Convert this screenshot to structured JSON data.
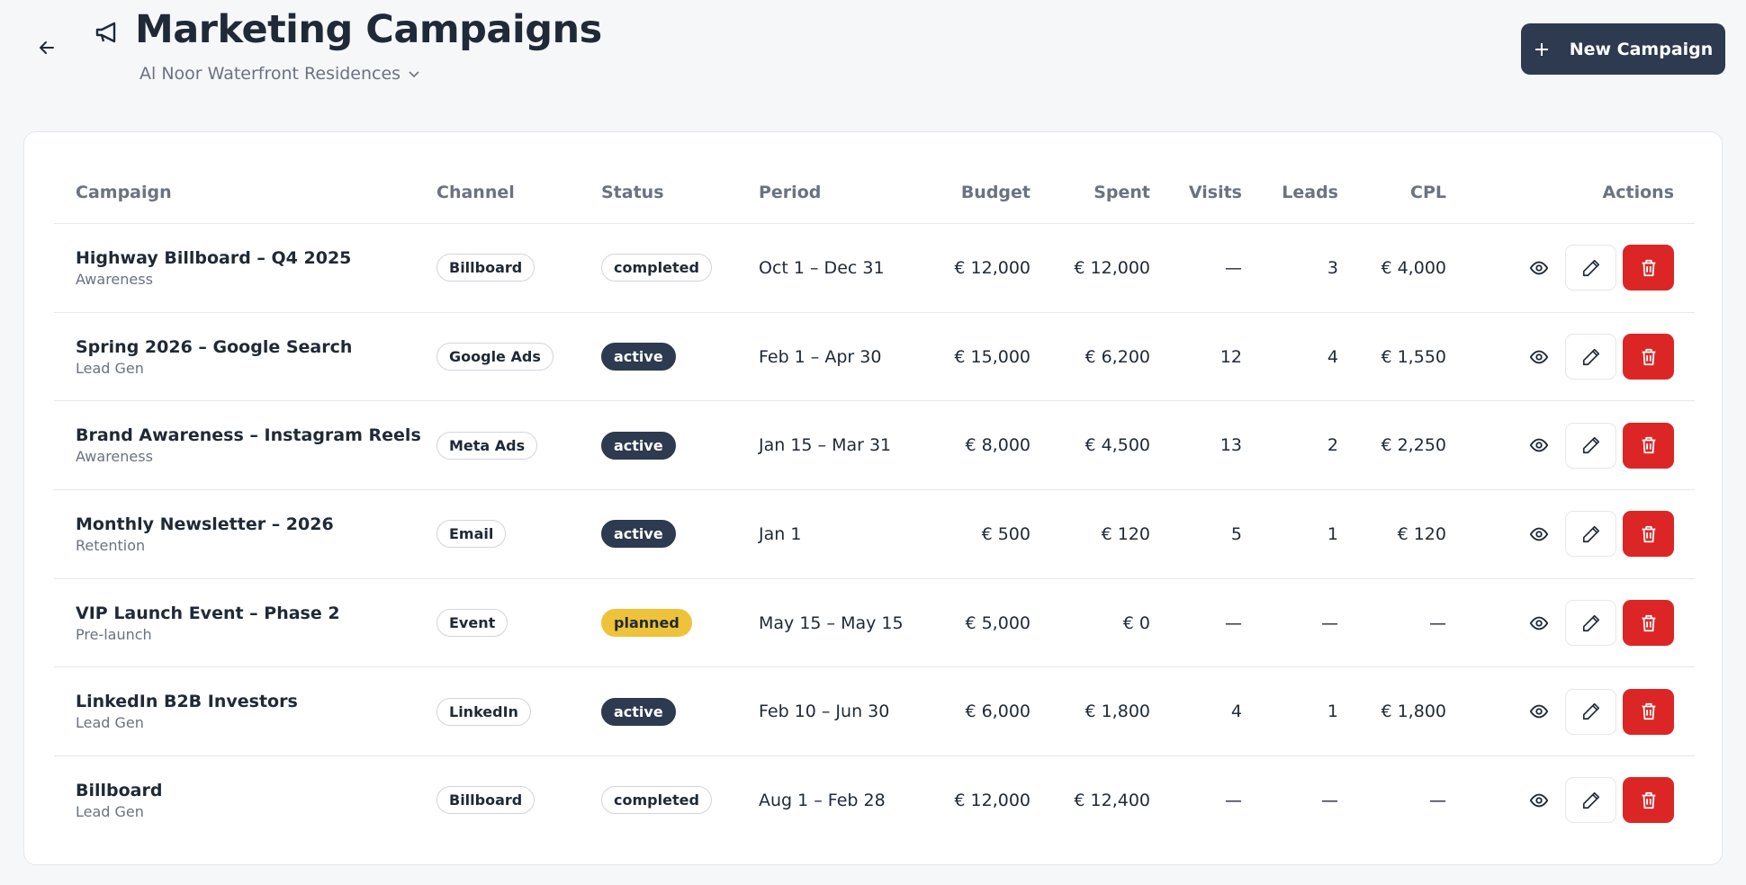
{
  "header": {
    "title": "Marketing Campaigns",
    "project": "Al Noor Waterfront Residences",
    "new_button": "New Campaign"
  },
  "table": {
    "columns": [
      "Campaign",
      "Channel",
      "Status",
      "Period",
      "Budget",
      "Spent",
      "Visits",
      "Leads",
      "CPL",
      "Actions"
    ],
    "rows": [
      {
        "name": "Highway Billboard – Q4 2025",
        "category": "Awareness",
        "channel": "Billboard",
        "status": "completed",
        "period": "Oct 1 – Dec 31",
        "budget": "€ 12,000",
        "spent": "€ 12,000",
        "visits": "—",
        "leads": "3",
        "cpl": "€ 4,000"
      },
      {
        "name": "Spring 2026 – Google Search",
        "category": "Lead Gen",
        "channel": "Google Ads",
        "status": "active",
        "period": "Feb 1 – Apr 30",
        "budget": "€ 15,000",
        "spent": "€ 6,200",
        "visits": "12",
        "leads": "4",
        "cpl": "€ 1,550"
      },
      {
        "name": "Brand Awareness – Instagram Reels",
        "category": "Awareness",
        "channel": "Meta Ads",
        "status": "active",
        "period": "Jan 15 – Mar 31",
        "budget": "€ 8,000",
        "spent": "€ 4,500",
        "visits": "13",
        "leads": "2",
        "cpl": "€ 2,250"
      },
      {
        "name": "Monthly Newsletter – 2026",
        "category": "Retention",
        "channel": "Email",
        "status": "active",
        "period": "Jan 1",
        "budget": "€ 500",
        "spent": "€ 120",
        "visits": "5",
        "leads": "1",
        "cpl": "€ 120"
      },
      {
        "name": "VIP Launch Event – Phase 2",
        "category": "Pre-launch",
        "channel": "Event",
        "status": "planned",
        "period": "May 15 – May 15",
        "budget": "€ 5,000",
        "spent": "€ 0",
        "visits": "—",
        "leads": "—",
        "cpl": "—"
      },
      {
        "name": "LinkedIn B2B Investors",
        "category": "Lead Gen",
        "channel": "LinkedIn",
        "status": "active",
        "period": "Feb 10 – Jun 30",
        "budget": "€ 6,000",
        "spent": "€ 1,800",
        "visits": "4",
        "leads": "1",
        "cpl": "€ 1,800"
      },
      {
        "name": "Billboard",
        "category": "Lead Gen",
        "channel": "Billboard",
        "status": "completed",
        "period": "Aug 1 – Feb 28",
        "budget": "€ 12,000",
        "spent": "€ 12,400",
        "visits": "—",
        "leads": "—",
        "cpl": "—"
      }
    ]
  }
}
